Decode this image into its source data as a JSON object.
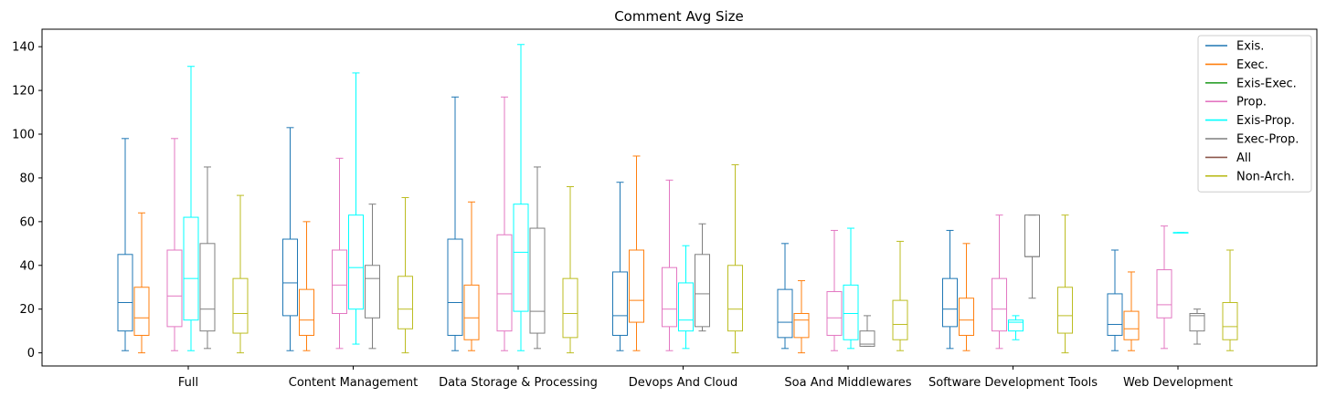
{
  "chart_data": {
    "type": "boxplot",
    "title": "Comment Avg Size",
    "xlabel": "",
    "ylabel": "",
    "ylim": [
      -6,
      148
    ],
    "yticks": [
      0,
      20,
      40,
      60,
      80,
      100,
      120,
      140
    ],
    "grid": false,
    "legend_position": "top-right",
    "categories": [
      "Full",
      "Content Management",
      "Data Storage & Processing",
      "Devops And Cloud",
      "Soa And Middlewares",
      "Software Development Tools",
      "Web Development"
    ],
    "series": [
      {
        "name": "Exis.",
        "color": "#1f77b4",
        "boxes": [
          {
            "min": 1,
            "q1": 10,
            "median": 23,
            "q3": 45,
            "max": 98
          },
          {
            "min": 1,
            "q1": 17,
            "median": 32,
            "q3": 52,
            "max": 103
          },
          {
            "min": 1,
            "q1": 8,
            "median": 23,
            "q3": 52,
            "max": 117
          },
          {
            "min": 1,
            "q1": 8,
            "median": 17,
            "q3": 37,
            "max": 78
          },
          {
            "min": 2,
            "q1": 7,
            "median": 14,
            "q3": 29,
            "max": 50
          },
          {
            "min": 2,
            "q1": 12,
            "median": 20,
            "q3": 34,
            "max": 56
          },
          {
            "min": 1,
            "q1": 8,
            "median": 13,
            "q3": 27,
            "max": 47
          }
        ]
      },
      {
        "name": "Exec.",
        "color": "#ff7f0e",
        "boxes": [
          {
            "min": 0,
            "q1": 8,
            "median": 16,
            "q3": 30,
            "max": 64
          },
          {
            "min": 1,
            "q1": 8,
            "median": 15,
            "q3": 29,
            "max": 60
          },
          {
            "min": 1,
            "q1": 6,
            "median": 16,
            "q3": 31,
            "max": 69
          },
          {
            "min": 1,
            "q1": 14,
            "median": 24,
            "q3": 47,
            "max": 90
          },
          {
            "min": 0,
            "q1": 7,
            "median": 15,
            "q3": 18,
            "max": 33
          },
          {
            "min": 1,
            "q1": 8,
            "median": 15,
            "q3": 25,
            "max": 50
          },
          {
            "min": 1,
            "q1": 6,
            "median": 11,
            "q3": 19,
            "max": 37
          }
        ]
      },
      {
        "name": "Exis-Exec.",
        "color": "#2ca02c",
        "boxes": [
          null,
          null,
          null,
          null,
          null,
          null,
          null
        ]
      },
      {
        "name": "Prop.",
        "color": "#e377c2",
        "boxes": [
          {
            "min": 1,
            "q1": 12,
            "median": 26,
            "q3": 47,
            "max": 98
          },
          {
            "min": 2,
            "q1": 18,
            "median": 31,
            "q3": 47,
            "max": 89
          },
          {
            "min": 1,
            "q1": 10,
            "median": 27,
            "q3": 54,
            "max": 117
          },
          {
            "min": 1,
            "q1": 12,
            "median": 20,
            "q3": 39,
            "max": 79
          },
          {
            "min": 1,
            "q1": 8,
            "median": 16,
            "q3": 28,
            "max": 56
          },
          {
            "min": 2,
            "q1": 10,
            "median": 20,
            "q3": 34,
            "max": 63
          },
          {
            "min": 2,
            "q1": 16,
            "median": 22,
            "q3": 38,
            "max": 58
          }
        ]
      },
      {
        "name": "Exis-Prop.",
        "color": "#00ffff",
        "boxes": [
          {
            "min": 1,
            "q1": 15,
            "median": 34,
            "q3": 62,
            "max": 131
          },
          {
            "min": 4,
            "q1": 20,
            "median": 39,
            "q3": 63,
            "max": 128
          },
          {
            "min": 1,
            "q1": 19,
            "median": 46,
            "q3": 68,
            "max": 141
          },
          {
            "min": 2,
            "q1": 10,
            "median": 15,
            "q3": 32,
            "max": 49
          },
          {
            "min": 2,
            "q1": 6,
            "median": 18,
            "q3": 31,
            "max": 57
          },
          {
            "min": 6,
            "q1": 10,
            "median": 14,
            "q3": 15,
            "max": 17
          },
          {
            "min": 55,
            "q1": 55,
            "median": 55,
            "q3": 55,
            "max": 55
          }
        ]
      },
      {
        "name": "Exec-Prop.",
        "color": "#7f7f7f",
        "boxes": [
          {
            "min": 2,
            "q1": 10,
            "median": 20,
            "q3": 50,
            "max": 85
          },
          {
            "min": 2,
            "q1": 16,
            "median": 34,
            "q3": 40,
            "max": 68
          },
          {
            "min": 2,
            "q1": 9,
            "median": 19,
            "q3": 57,
            "max": 85
          },
          {
            "min": 10,
            "q1": 12,
            "median": 27,
            "q3": 45,
            "max": 59
          },
          {
            "min": 3,
            "q1": 3,
            "median": 4,
            "q3": 10,
            "max": 17
          },
          {
            "min": 25,
            "q1": 44,
            "median": 44,
            "q3": 63,
            "max": 63
          },
          {
            "min": 4,
            "q1": 10,
            "median": 17,
            "q3": 18,
            "max": 20
          }
        ]
      },
      {
        "name": "All",
        "color": "#8c564b",
        "boxes": [
          null,
          null,
          null,
          null,
          null,
          null,
          null
        ]
      },
      {
        "name": "Non-Arch.",
        "color": "#bcbd22",
        "boxes": [
          {
            "min": 0,
            "q1": 9,
            "median": 18,
            "q3": 34,
            "max": 72
          },
          {
            "min": 0,
            "q1": 11,
            "median": 20,
            "q3": 35,
            "max": 71
          },
          {
            "min": 0,
            "q1": 7,
            "median": 18,
            "q3": 34,
            "max": 76
          },
          {
            "min": 0,
            "q1": 10,
            "median": 20,
            "q3": 40,
            "max": 86
          },
          {
            "min": 1,
            "q1": 6,
            "median": 13,
            "q3": 24,
            "max": 51
          },
          {
            "min": 0,
            "q1": 9,
            "median": 17,
            "q3": 30,
            "max": 63
          },
          {
            "min": 1,
            "q1": 6,
            "median": 12,
            "q3": 23,
            "max": 47
          }
        ]
      }
    ]
  }
}
